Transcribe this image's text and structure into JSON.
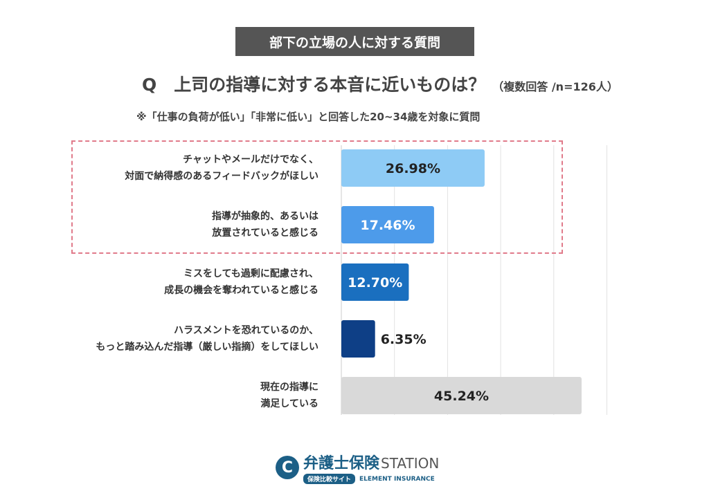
{
  "header": {
    "badge": "部下の立場の人に対する質問",
    "question": "Q　上司の指導に対する本音に近いものは？",
    "question_note": "（複数回答 /n=126人）",
    "subnote": "※「仕事の負荷が低い」「非常に低い」と回答した20~34歳を対象に質問"
  },
  "chart_data": {
    "type": "bar",
    "orientation": "horizontal",
    "xlim": [
      0,
      50
    ],
    "grid": true,
    "unit": "%",
    "categories": [
      [
        "チャットやメールだけでなく、",
        "対面で納得感のあるフィードバックがほしい"
      ],
      [
        "指導が抽象的、あるいは",
        "放置されていると感じる"
      ],
      [
        "ミスをしても過剰に配慮され、",
        "成長の機会を奪われていると感じる"
      ],
      [
        "ハラスメントを恐れているのか、",
        "もっと踏み込んだ指導（厳しい指摘）をしてほしい"
      ],
      [
        "現在の指導に",
        "満足している"
      ]
    ],
    "values": [
      26.98,
      17.46,
      12.7,
      6.35,
      45.24
    ],
    "data_labels": [
      "26.98%",
      "17.46%",
      "12.70%",
      "6.35%",
      "45.24%"
    ],
    "colors": [
      "#8ecbf5",
      "#4d9bea",
      "#1a6fbf",
      "#0e3f86",
      "#d9d9d9"
    ],
    "label_colors": [
      "#222",
      "#fff",
      "#fff",
      "#222",
      "#222"
    ],
    "highlight": "dashed box around first two items"
  },
  "logo": {
    "name": "弁護士保険",
    "suffix": "STATION",
    "tag": "保険比較サイト",
    "company": "ELEMENT INSURANCE"
  }
}
